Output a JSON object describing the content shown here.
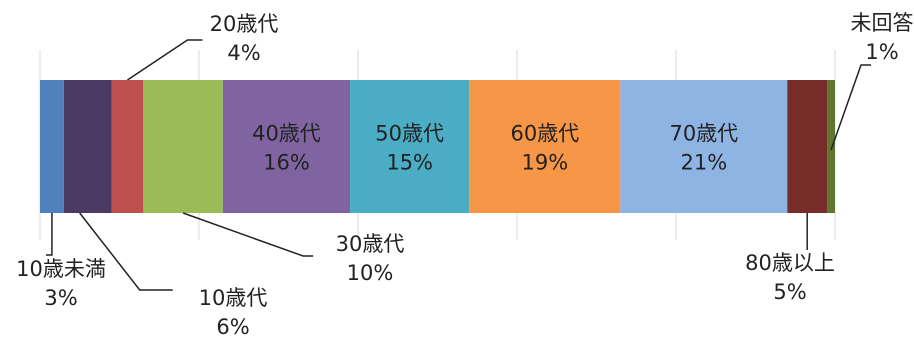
{
  "chart_data": {
    "type": "bar",
    "orientation": "horizontal",
    "stacked": true,
    "title": "",
    "xlabel": "",
    "ylabel": "",
    "xlim": [
      0,
      100
    ],
    "grid": true,
    "legend": "none",
    "series": [
      {
        "name": "10歳未満",
        "value": 3,
        "label": "3%",
        "color": "#4f81bd"
      },
      {
        "name": "10歳代",
        "value": 6,
        "label": "6%",
        "color": "#4b3b64"
      },
      {
        "name": "20歳代",
        "value": 4,
        "label": "4%",
        "color": "#c0504d"
      },
      {
        "name": "30歳代",
        "value": 10,
        "label": "10%",
        "color": "#9bbb59"
      },
      {
        "name": "40歳代",
        "value": 16,
        "label": "16%",
        "color": "#8064a2"
      },
      {
        "name": "50歳代",
        "value": 15,
        "label": "15%",
        "color": "#4bacc6"
      },
      {
        "name": "60歳代",
        "value": 19,
        "label": "19%",
        "color": "#f79646"
      },
      {
        "name": "70歳代",
        "value": 21,
        "label": "21%",
        "color": "#8eb4e3"
      },
      {
        "name": "80歳以上",
        "value": 5,
        "label": "5%",
        "color": "#772c2a"
      },
      {
        "name": "未回答",
        "value": 1,
        "label": "1%",
        "color": "#5f7530"
      }
    ]
  }
}
